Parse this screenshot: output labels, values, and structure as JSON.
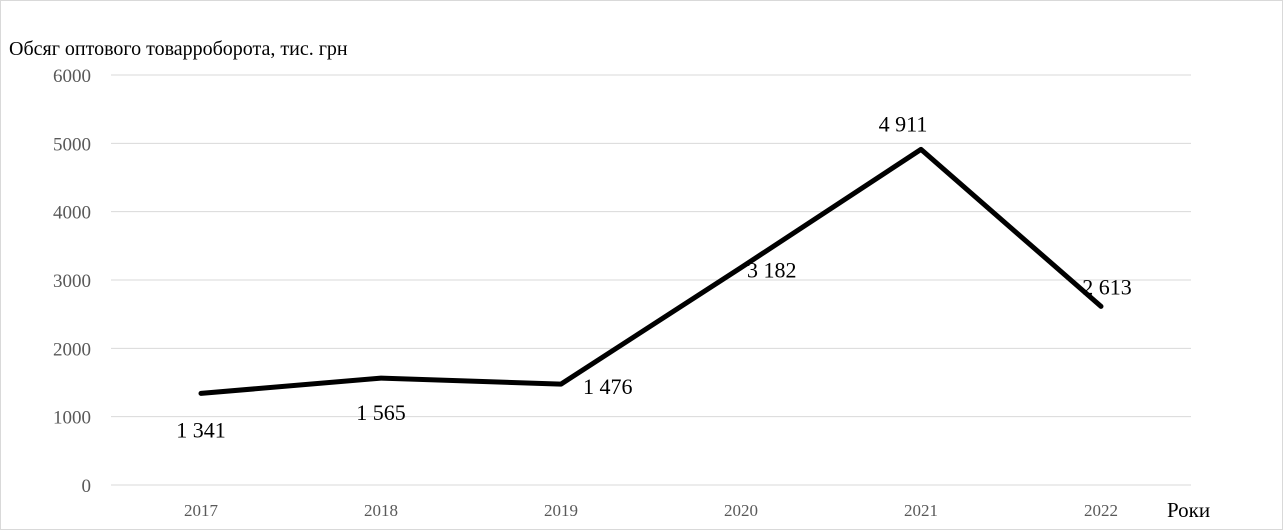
{
  "chart_data": {
    "type": "line",
    "title": "",
    "ylabel": "Обсяг оптового товарроборота, тис. грн",
    "xlabel": "Роки",
    "categories": [
      "2017",
      "2018",
      "2019",
      "2020",
      "2021",
      "2022"
    ],
    "series": [
      {
        "values": [
          1341,
          1565,
          1476,
          3182,
          4911,
          2613
        ],
        "data_labels": [
          "1 341",
          "1 565",
          "1 476",
          "3 182",
          "4 911",
          "2 613"
        ],
        "color": "#000000"
      }
    ],
    "ylim": [
      0,
      6000
    ],
    "yticks": [
      "0",
      "1000",
      "2000",
      "3000",
      "4000",
      "5000",
      "6000"
    ],
    "grid": true,
    "legend": "none"
  }
}
